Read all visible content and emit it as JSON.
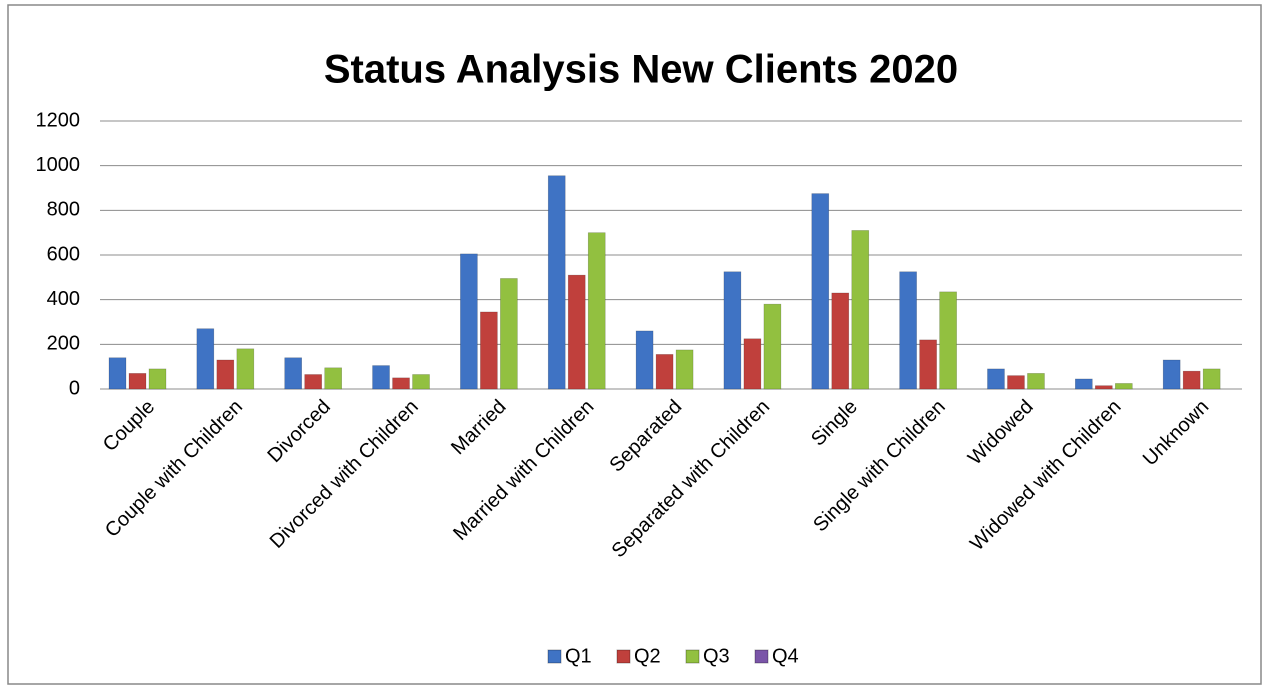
{
  "chart_data": {
    "type": "bar",
    "title": "Status Analysis New Clients 2020",
    "categories": [
      "Couple",
      "Couple with Children",
      "Divorced",
      "Divorced with Children",
      "Married",
      "Married with Children",
      "Separated",
      "Separated with Children",
      "Single",
      "Single with Children",
      "Widowed",
      "Widowed with Children",
      "Unknown"
    ],
    "series": [
      {
        "name": "Q1",
        "color": "#3f73c4",
        "values": [
          140,
          270,
          140,
          105,
          605,
          955,
          260,
          525,
          875,
          525,
          90,
          45,
          130
        ]
      },
      {
        "name": "Q2",
        "color": "#c0403c",
        "values": [
          70,
          130,
          65,
          50,
          345,
          510,
          155,
          225,
          430,
          220,
          60,
          15,
          80
        ]
      },
      {
        "name": "Q3",
        "color": "#92c040",
        "values": [
          90,
          180,
          95,
          65,
          495,
          700,
          175,
          380,
          710,
          435,
          70,
          25,
          90
        ]
      },
      {
        "name": "Q4",
        "color": "#7a55a8",
        "values": [
          0,
          0,
          0,
          0,
          0,
          0,
          0,
          0,
          0,
          0,
          0,
          0,
          0
        ]
      }
    ],
    "ylim": [
      0,
      1200
    ],
    "yticks": [
      0,
      200,
      400,
      600,
      800,
      1000,
      1200
    ],
    "grid": true,
    "legend": "bottom"
  }
}
